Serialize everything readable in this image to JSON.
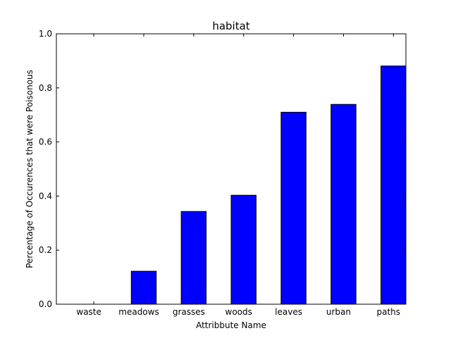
{
  "chart_data": {
    "type": "bar",
    "title": "habitat",
    "xlabel": "Attribbute Name",
    "ylabel": "Percentage of Occurences that were Poisonous",
    "categories": [
      "waste",
      "meadows",
      "grasses",
      "woods",
      "leaves",
      "urban",
      "paths"
    ],
    "values": [
      0.0,
      0.122,
      0.343,
      0.403,
      0.71,
      0.739,
      0.881
    ],
    "ylim": [
      0.0,
      1.0
    ],
    "yticks": [
      "0.0",
      "0.2",
      "0.4",
      "0.6",
      "0.8",
      "1.0"
    ],
    "grid": false,
    "legend": "none",
    "bar_color": "#0000ff",
    "edge_color": "#000000"
  }
}
